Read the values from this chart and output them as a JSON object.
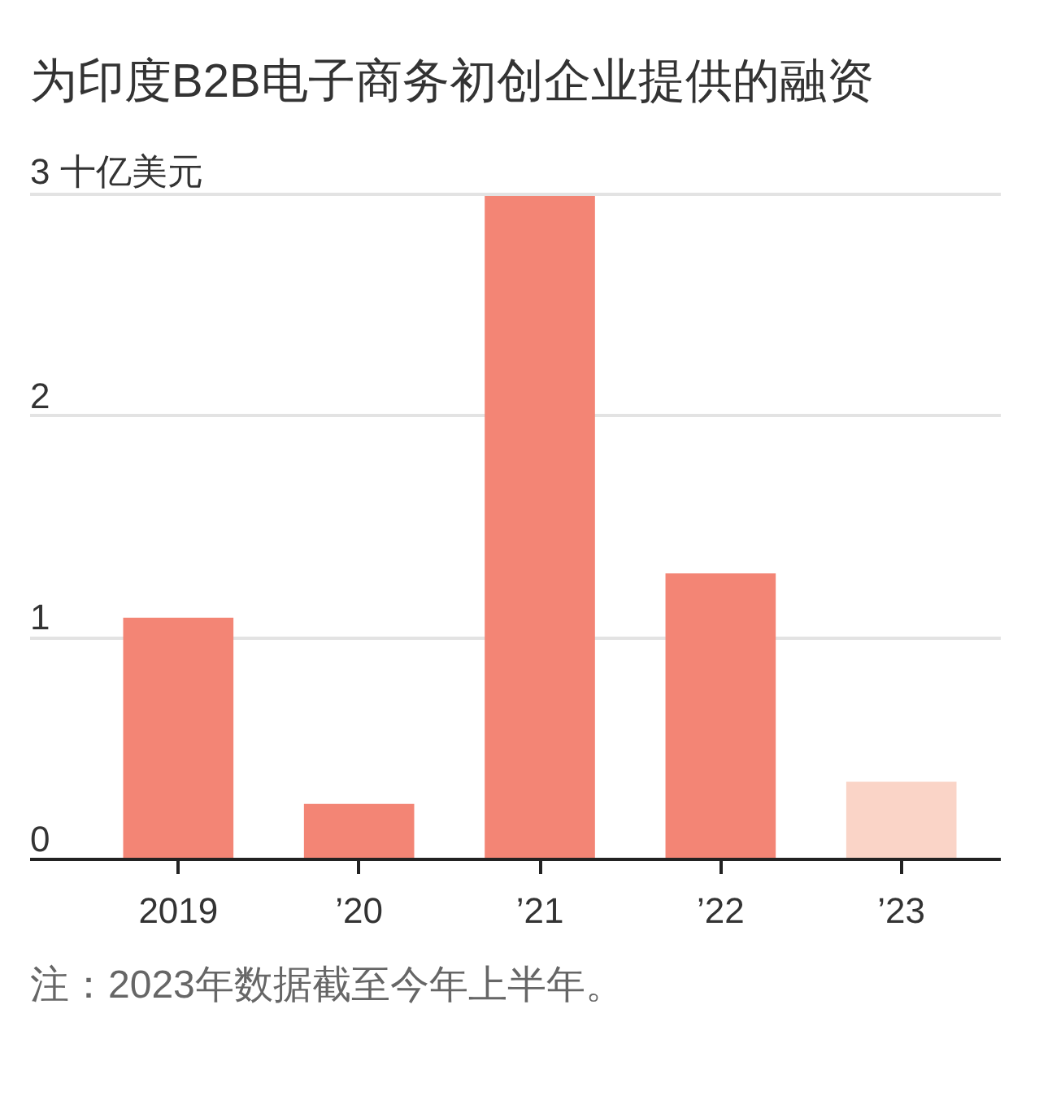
{
  "chart_data": {
    "type": "bar",
    "title": "为印度B2B电子商务初创企业提供的融资",
    "categories": [
      "2019",
      "’20",
      "’21",
      "’22",
      "’23"
    ],
    "values": [
      1.09,
      0.25,
      3,
      1.29,
      0.35
    ],
    "colors": [
      "#f38575",
      "#f38575",
      "#f38575",
      "#f38575",
      "#fad4c7"
    ],
    "ylim": [
      0,
      3
    ],
    "yticks": [
      0,
      1,
      2,
      {
        "value": 3,
        "label": "3 十亿美元"
      }
    ],
    "grid": "y",
    "annotations": [
      "注：2023年数据截至今年上半年。"
    ]
  }
}
